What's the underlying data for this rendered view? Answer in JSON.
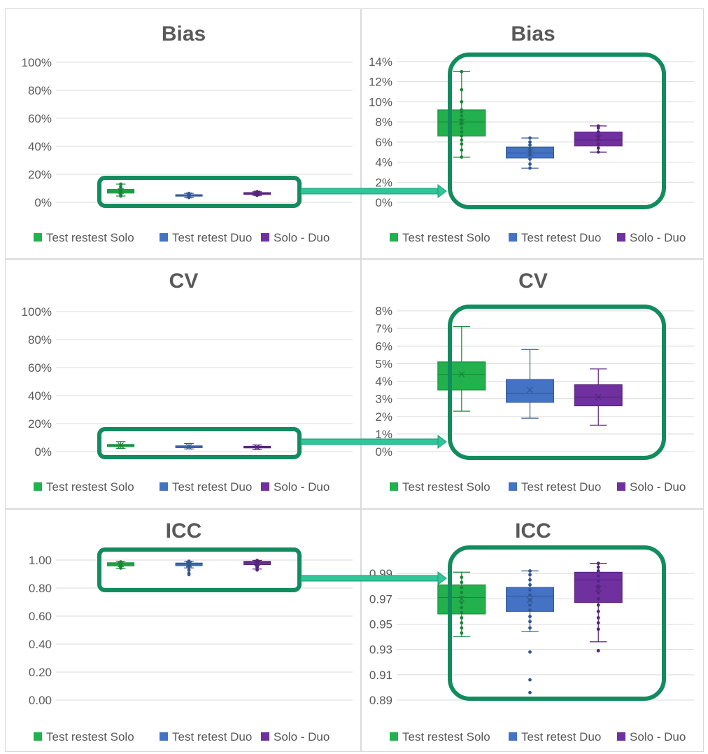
{
  "chart_data": [
    {
      "id": "bias-full",
      "type": "box",
      "title": "Bias",
      "ylim": [
        0,
        1
      ],
      "yticks": [
        0,
        0.2,
        0.4,
        0.6,
        0.8,
        1.0
      ],
      "ytick_labels": [
        "0%",
        "20%",
        "40%",
        "60%",
        "80%",
        "100%"
      ],
      "grid": true,
      "legend": "bottom",
      "series": [
        {
          "name": "Test restest Solo",
          "color": "#22b14c",
          "min": 0.045,
          "q1": 0.066,
          "median": 0.08,
          "mean": 0.08,
          "q3": 0.092,
          "max": 0.13,
          "points": [
            0.045,
            0.052,
            0.058,
            0.062,
            0.066,
            0.07,
            0.074,
            0.078,
            0.082,
            0.086,
            0.09,
            0.092,
            0.1,
            0.112,
            0.13
          ]
        },
        {
          "name": "Test retest Duo",
          "color": "#4472c4",
          "min": 0.034,
          "q1": 0.044,
          "median": 0.049,
          "mean": 0.049,
          "q3": 0.055,
          "max": 0.064,
          "points": [
            0.034,
            0.038,
            0.043,
            0.047,
            0.05,
            0.053,
            0.057,
            0.06,
            0.064
          ]
        },
        {
          "name": "Solo - Duo",
          "color": "#7030a0",
          "min": 0.05,
          "q1": 0.056,
          "median": 0.062,
          "mean": 0.064,
          "q3": 0.07,
          "max": 0.076,
          "points": [
            0.05,
            0.054,
            0.058,
            0.062,
            0.066,
            0.07,
            0.074,
            0.076
          ]
        }
      ]
    },
    {
      "id": "bias-zoom",
      "type": "box",
      "title": "Bias",
      "ylim": [
        0,
        0.14
      ],
      "yticks": [
        0,
        0.02,
        0.04,
        0.06,
        0.08,
        0.1,
        0.12,
        0.14
      ],
      "ytick_labels": [
        "0%",
        "2%",
        "4%",
        "6%",
        "8%",
        "10%",
        "12%",
        "14%"
      ],
      "grid": true,
      "legend": "bottom",
      "series": [
        {
          "name": "Test restest Solo",
          "color": "#22b14c",
          "min": 0.045,
          "q1": 0.066,
          "median": 0.08,
          "mean": 0.08,
          "q3": 0.092,
          "max": 0.13,
          "points": [
            0.045,
            0.052,
            0.058,
            0.062,
            0.066,
            0.07,
            0.074,
            0.078,
            0.082,
            0.086,
            0.09,
            0.092,
            0.1,
            0.112,
            0.13
          ]
        },
        {
          "name": "Test retest Duo",
          "color": "#4472c4",
          "min": 0.034,
          "q1": 0.044,
          "median": 0.049,
          "mean": 0.049,
          "q3": 0.055,
          "max": 0.064,
          "points": [
            0.034,
            0.038,
            0.043,
            0.047,
            0.05,
            0.053,
            0.057,
            0.06,
            0.064
          ]
        },
        {
          "name": "Solo - Duo",
          "color": "#7030a0",
          "min": 0.05,
          "q1": 0.056,
          "median": 0.062,
          "mean": 0.064,
          "q3": 0.07,
          "max": 0.076,
          "points": [
            0.05,
            0.054,
            0.058,
            0.062,
            0.066,
            0.07,
            0.074,
            0.076
          ]
        }
      ]
    },
    {
      "id": "cv-full",
      "type": "box",
      "title": "CV",
      "ylim": [
        0,
        1
      ],
      "yticks": [
        0,
        0.2,
        0.4,
        0.6,
        0.8,
        1.0
      ],
      "ytick_labels": [
        "0%",
        "20%",
        "40%",
        "60%",
        "80%",
        "100%"
      ],
      "grid": true,
      "legend": "bottom",
      "series": [
        {
          "name": "Test restest Solo",
          "color": "#22b14c",
          "min": 0.023,
          "q1": 0.035,
          "median": 0.044,
          "mean": 0.044,
          "q3": 0.051,
          "max": 0.071,
          "points": []
        },
        {
          "name": "Test retest Duo",
          "color": "#4472c4",
          "min": 0.019,
          "q1": 0.028,
          "median": 0.033,
          "mean": 0.035,
          "q3": 0.041,
          "max": 0.058,
          "points": []
        },
        {
          "name": "Solo - Duo",
          "color": "#7030a0",
          "min": 0.015,
          "q1": 0.026,
          "median": 0.031,
          "mean": 0.031,
          "q3": 0.038,
          "max": 0.047,
          "points": []
        }
      ]
    },
    {
      "id": "cv-zoom",
      "type": "box",
      "title": "CV",
      "ylim": [
        0,
        0.08
      ],
      "yticks": [
        0,
        0.01,
        0.02,
        0.03,
        0.04,
        0.05,
        0.06,
        0.07,
        0.08
      ],
      "ytick_labels": [
        "0%",
        "1%",
        "2%",
        "3%",
        "4%",
        "5%",
        "6%",
        "7%",
        "8%"
      ],
      "grid": true,
      "legend": "bottom",
      "series": [
        {
          "name": "Test restest Solo",
          "color": "#22b14c",
          "min": 0.023,
          "q1": 0.035,
          "median": 0.044,
          "mean": 0.044,
          "q3": 0.051,
          "max": 0.071,
          "points": []
        },
        {
          "name": "Test retest Duo",
          "color": "#4472c4",
          "min": 0.019,
          "q1": 0.028,
          "median": 0.033,
          "mean": 0.035,
          "q3": 0.041,
          "max": 0.058,
          "points": []
        },
        {
          "name": "Solo - Duo",
          "color": "#7030a0",
          "min": 0.015,
          "q1": 0.026,
          "median": 0.031,
          "mean": 0.031,
          "q3": 0.038,
          "max": 0.047,
          "points": []
        }
      ]
    },
    {
      "id": "icc-full",
      "type": "box",
      "title": "ICC",
      "ylim": [
        0,
        1
      ],
      "yticks": [
        0,
        0.2,
        0.4,
        0.6,
        0.8,
        1.0
      ],
      "ytick_labels": [
        "0.00",
        "0.20",
        "0.40",
        "0.60",
        "0.80",
        "1.00"
      ],
      "grid": true,
      "legend": "bottom",
      "series": [
        {
          "name": "Test restest Solo",
          "color": "#22b14c",
          "min": 0.94,
          "q1": 0.958,
          "median": 0.971,
          "mean": 0.97,
          "q3": 0.981,
          "max": 0.991,
          "points": [
            0.943,
            0.947,
            0.951,
            0.955,
            0.959,
            0.963,
            0.967,
            0.971,
            0.975,
            0.979,
            0.983,
            0.987
          ]
        },
        {
          "name": "Test retest Duo",
          "color": "#4472c4",
          "min": 0.944,
          "q1": 0.96,
          "median": 0.972,
          "mean": 0.969,
          "q3": 0.979,
          "max": 0.992,
          "points": [
            0.896,
            0.906,
            0.928,
            0.947,
            0.952,
            0.956,
            0.961,
            0.965,
            0.969,
            0.973,
            0.977,
            0.981,
            0.985,
            0.989,
            0.992
          ]
        },
        {
          "name": "Solo - Duo",
          "color": "#7030a0",
          "min": 0.936,
          "q1": 0.967,
          "median": 0.985,
          "mean": 0.978,
          "q3": 0.991,
          "max": 0.998,
          "points": [
            0.929,
            0.946,
            0.951,
            0.955,
            0.96,
            0.965,
            0.97,
            0.975,
            0.98,
            0.984,
            0.988,
            0.992,
            0.995,
            0.998
          ]
        }
      ]
    },
    {
      "id": "icc-zoom",
      "type": "box",
      "title": "ICC",
      "ylim": [
        0.89,
        1.0
      ],
      "yticks": [
        0.89,
        0.91,
        0.93,
        0.95,
        0.97,
        0.99
      ],
      "ytick_labels": [
        "0.89",
        "0.91",
        "0.93",
        "0.95",
        "0.97",
        "0.99"
      ],
      "grid": true,
      "legend": "bottom",
      "series": [
        {
          "name": "Test restest Solo",
          "color": "#22b14c",
          "min": 0.94,
          "q1": 0.958,
          "median": 0.971,
          "mean": 0.97,
          "q3": 0.981,
          "max": 0.991,
          "points": [
            0.943,
            0.947,
            0.951,
            0.955,
            0.959,
            0.963,
            0.967,
            0.971,
            0.975,
            0.979,
            0.983,
            0.987
          ]
        },
        {
          "name": "Test retest Duo",
          "color": "#4472c4",
          "min": 0.944,
          "q1": 0.96,
          "median": 0.972,
          "mean": 0.969,
          "q3": 0.979,
          "max": 0.992,
          "points": [
            0.896,
            0.906,
            0.928,
            0.947,
            0.952,
            0.956,
            0.961,
            0.965,
            0.969,
            0.973,
            0.977,
            0.981,
            0.985,
            0.989,
            0.992
          ]
        },
        {
          "name": "Solo - Duo",
          "color": "#7030a0",
          "min": 0.936,
          "q1": 0.967,
          "median": 0.985,
          "mean": 0.978,
          "q3": 0.991,
          "max": 0.998,
          "points": [
            0.929,
            0.946,
            0.951,
            0.955,
            0.96,
            0.965,
            0.97,
            0.975,
            0.98,
            0.984,
            0.988,
            0.992,
            0.995,
            0.998
          ]
        }
      ]
    }
  ],
  "colors": {
    "highlight_frame": "#128c5e",
    "arrow": "#2fc79a",
    "grid": "#d9d9d9",
    "text": "#595959"
  }
}
